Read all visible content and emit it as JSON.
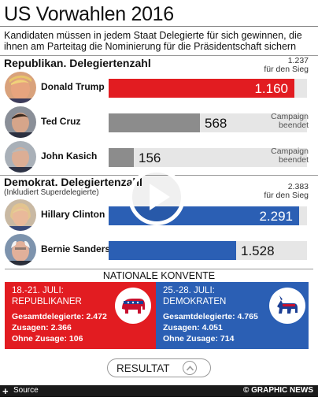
{
  "header": {
    "title": "US Vorwahlen 2016",
    "subtitle": "Kandidaten müssen in jedem Staat Delegierte für sich gewinnen, die ihnen am Parteitag die Nominierung für die Präsidentschaft sichern"
  },
  "republicans": {
    "heading": "Republikan. Delegiertenzahl",
    "target_value": "1.237",
    "target_label": "für den Sieg",
    "candidates": [
      {
        "name": "Donald Trump",
        "delegates": 1160,
        "label": "1.160",
        "status": "",
        "color": "#e21c21"
      },
      {
        "name": "Ted Cruz",
        "delegates": 568,
        "label": "568",
        "status": "Campaign beendet",
        "color": "#8c8c8c"
      },
      {
        "name": "John Kasich",
        "delegates": 156,
        "label": "156",
        "status": "Campaign beendet",
        "color": "#8c8c8c"
      }
    ]
  },
  "democrats": {
    "heading": "Demokrat. Delegiertenzahl",
    "note": "(Inkludiert Superdelegierte)",
    "target_value": "2.383",
    "target_label": "für den Sieg",
    "candidates": [
      {
        "name": "Hillary Clinton",
        "delegates": 2291,
        "label": "2.291",
        "status": "",
        "color": "#2b5fb4"
      },
      {
        "name": "Bernie Sanders",
        "delegates": 1528,
        "label": "1.528",
        "status": "",
        "color": "#2b5fb4"
      }
    ]
  },
  "conventions": {
    "heading": "NATIONALE KONVENTE",
    "rep": {
      "date": "18.-21. JULI:",
      "party": "REPUBLIKANER",
      "lines": [
        "Gesamtdelegierte: 2.472",
        "Zusagen: 2.366",
        "Ohne Zusage: 106"
      ],
      "emblem": "elephant-icon"
    },
    "dem": {
      "date": "25.-28. JULI:",
      "party": "DEMOKRATEN",
      "lines": [
        "Gesamtdelegierte: 4.765",
        "Zusagen: 4.051",
        "Ohne Zusage: 714"
      ],
      "emblem": "donkey-icon"
    }
  },
  "result_button": {
    "label": "RESULTAT"
  },
  "footer": {
    "plus": "+",
    "source": "Source",
    "copyright": "© GRAPHIC NEWS"
  },
  "chart_data": [
    {
      "type": "bar",
      "title": "Republikan. Delegiertenzahl",
      "categories": [
        "Donald Trump",
        "Ted Cruz",
        "John Kasich"
      ],
      "values": [
        1160,
        568,
        156
      ],
      "target": 1237,
      "ylim": [
        0,
        1237
      ]
    },
    {
      "type": "bar",
      "title": "Demokrat. Delegiertenzahl",
      "categories": [
        "Hillary Clinton",
        "Bernie Sanders"
      ],
      "values": [
        2291,
        1528
      ],
      "target": 2383,
      "ylim": [
        0,
        2383
      ]
    }
  ]
}
